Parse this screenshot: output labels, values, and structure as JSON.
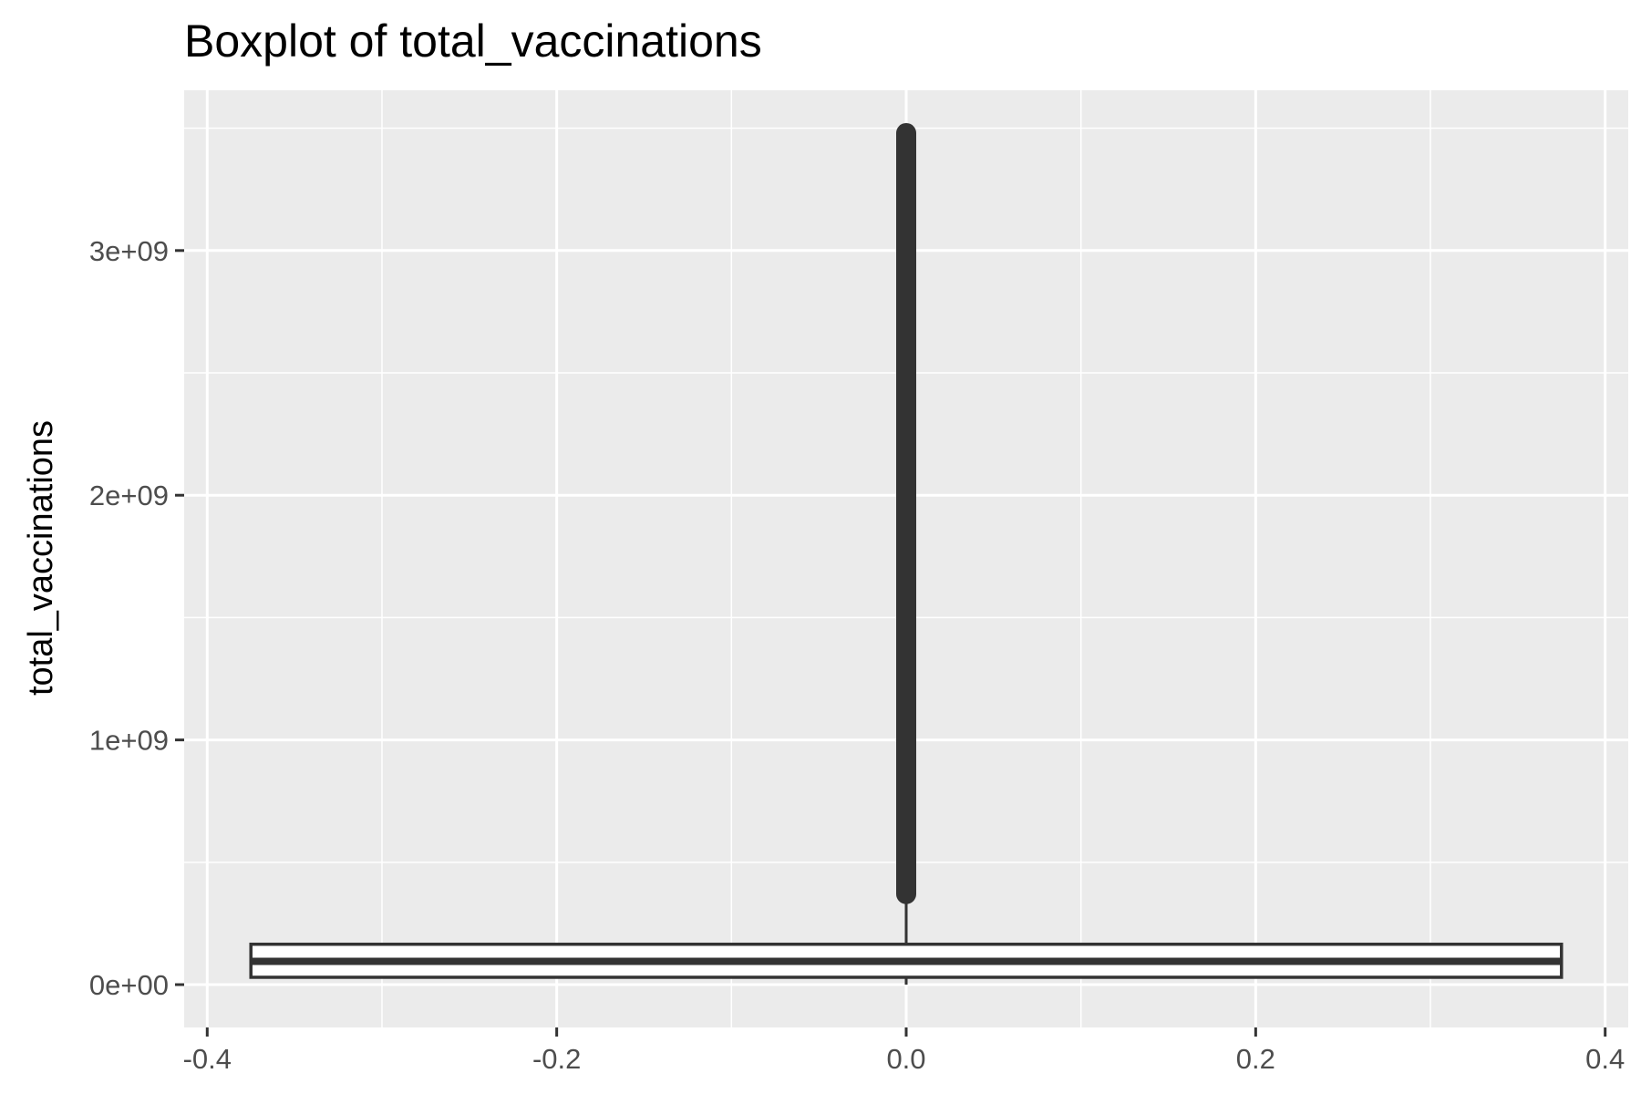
{
  "chart_data": {
    "type": "boxplot",
    "title": "Boxplot of total_vaccinations",
    "xlabel": "",
    "ylabel": "total_vaccinations",
    "xlim": [
      -0.4,
      0.4
    ],
    "ylim": [
      0,
      3500000000
    ],
    "x_ticks": [
      -0.4,
      -0.2,
      0.0,
      0.2,
      0.4
    ],
    "x_tick_labels": [
      "-0.4",
      "-0.2",
      "0.0",
      "0.2",
      "0.4"
    ],
    "y_ticks": [
      0,
      1000000000,
      2000000000,
      3000000000
    ],
    "y_tick_labels": [
      "0e+00",
      "1e+09",
      "2e+09",
      "3e+09"
    ],
    "grid": true,
    "box": {
      "x_center": 0,
      "x_min": -0.375,
      "x_max": 0.375,
      "q1": 30000000,
      "median": 95000000,
      "q3": 165000000,
      "whisker_low": 0,
      "whisker_high": 370000000,
      "outliers_from": 370000000,
      "outliers_to": 3480000000
    },
    "colors": {
      "panel_bg": "#ebebeb",
      "grid": "#ffffff",
      "box_stroke": "#333333",
      "box_fill": "#ffffff",
      "outlier": "#333333"
    }
  }
}
